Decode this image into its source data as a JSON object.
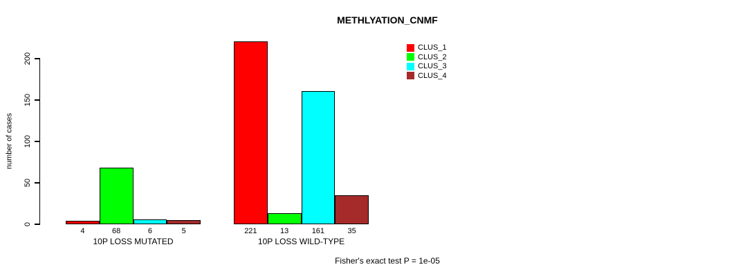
{
  "title": "METHLYATION_CNMF",
  "y_axis": {
    "label": "number of cases",
    "ticks": [
      0,
      50,
      100,
      150,
      200
    ]
  },
  "legend": {
    "items": [
      {
        "label": "CLUS_1",
        "color": "#FF0000"
      },
      {
        "label": "CLUS_2",
        "color": "#00FF00"
      },
      {
        "label": "CLUS_3",
        "color": "#00FFFF"
      },
      {
        "label": "CLUS_4",
        "color": "#A52A2A"
      }
    ]
  },
  "footer": {
    "annotation": "Fisher's exact test P = 1e-05"
  },
  "chart_data": {
    "type": "bar",
    "title": "METHLYATION_CNMF",
    "xlabel": "",
    "ylabel": "number of cases",
    "categories": [
      "10P LOSS MUTATED",
      "10P LOSS WILD-TYPE"
    ],
    "series": [
      {
        "name": "CLUS_1",
        "color": "#FF0000",
        "values": [
          4,
          221
        ]
      },
      {
        "name": "CLUS_2",
        "color": "#00FF00",
        "values": [
          68,
          13
        ]
      },
      {
        "name": "CLUS_3",
        "color": "#00FFFF",
        "values": [
          6,
          161
        ]
      },
      {
        "name": "CLUS_4",
        "color": "#A52A2A",
        "values": [
          5,
          35
        ]
      }
    ],
    "bar_value_labels": [
      [
        4,
        68,
        6,
        5
      ],
      [
        221,
        13,
        161,
        35
      ]
    ],
    "ylim": [
      0,
      230
    ],
    "yticks": [
      0,
      50,
      100,
      150,
      200
    ],
    "grid": false,
    "legend_position": "top-right",
    "annotation": "Fisher's exact test P = 1e-05"
  }
}
